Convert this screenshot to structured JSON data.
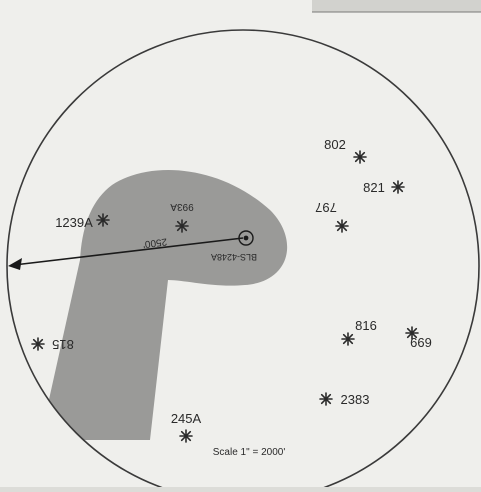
{
  "colors": {
    "paper": "#efefec",
    "frame": "#dcdcd8",
    "circle": "#3a3a3a",
    "zone": "#9a9a98",
    "ink": "#2a2a2a"
  },
  "markers": {
    "m802": "802",
    "m821": "821",
    "m797": "797",
    "m1239a": "1239A",
    "m993a": "993A",
    "m816": "816",
    "m699": "699",
    "m815": "815",
    "m2383": "2383",
    "m245a": "245A"
  },
  "center_label": "BLS-4248A",
  "radius_label": "2500'",
  "scale_label": "Scale 1\" = 2000'"
}
